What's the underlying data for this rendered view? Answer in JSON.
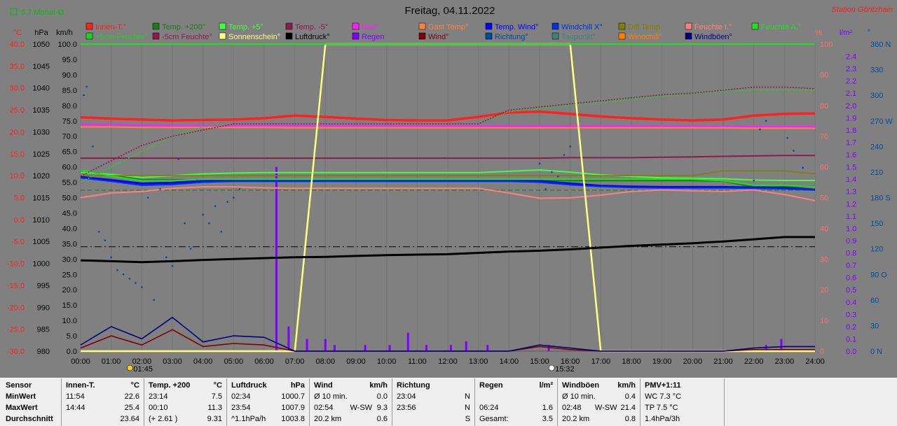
{
  "header": {
    "title": "Freitag, 04.11.2022",
    "station": "Station Göritzhain",
    "month_avg_label": "6.7 Monat-Ø"
  },
  "legend": [
    {
      "label": "Innen-T.°",
      "color": "#ff2020"
    },
    {
      "label": "Temp. +200°",
      "color": "#1d7a1d"
    },
    {
      "label": "Temp. +5°",
      "color": "#40ff40"
    },
    {
      "label": "Temp. -5°",
      "color": "#8b1c4a"
    },
    {
      "label": "Bad°",
      "color": "#ff20ff"
    },
    {
      "label": "Gast Temp°",
      "color": "#ff8040"
    },
    {
      "label": "Temp. Wind°",
      "color": "#0000ff"
    },
    {
      "label": "Windchill X°",
      "color": "#0033dd"
    },
    {
      "label": "Diff Temp.",
      "color": "#808000"
    },
    {
      "label": "Feuchte I.°",
      "color": "#ff8080"
    },
    {
      "label": "Feuchte A.°",
      "color": "#20e020"
    },
    {
      "label": "+5cm Feuchte°",
      "color": "#20d020"
    },
    {
      "label": "-5cm Feuchte°",
      "color": "#8b1c4a"
    },
    {
      "label": "Sonnenschein°",
      "color": "#ffff80"
    },
    {
      "label": "Luftdruck°",
      "color": "#000000"
    },
    {
      "label": "Regen",
      "color": "#8000ff"
    },
    {
      "label": "Wind°",
      "color": "#800000"
    },
    {
      "label": "Richtung°",
      "color": "#004a9a"
    },
    {
      "label": "Taupunkt°",
      "color": "#408080"
    },
    {
      "label": "Windchill°",
      "color": "#ff8000"
    },
    {
      "label": "Windböen°",
      "color": "#000080"
    }
  ],
  "axes": {
    "temp_unit": "°C",
    "hpa_unit": "hPa",
    "kmh_unit": "km/h",
    "pct_unit": "%",
    "rain_unit": "l/m²",
    "dir_unit": "°",
    "temp_ticks": [
      "40.0",
      "35.0",
      "30.0",
      "25.0",
      "20.0",
      "15.0",
      "10.0",
      "5.0",
      "0.0",
      "-5.0",
      "-10.0",
      "-15.0",
      "-20.0",
      "-25.0",
      "-30.0"
    ],
    "hpa_ticks": [
      "1050",
      "1045",
      "1040",
      "1035",
      "1030",
      "1025",
      "1020",
      "1015",
      "1010",
      "1005",
      "1000",
      "995",
      "990",
      "985",
      "980"
    ],
    "kmh_ticks": [
      "100.0",
      "95.0",
      "90.0",
      "85.0",
      "80.0",
      "75.0",
      "70.0",
      "65.0",
      "60.0",
      "55.0",
      "50.0",
      "45.0",
      "40.0",
      "35.0",
      "30.0",
      "25.0",
      "20.0",
      "15.0",
      "10.0",
      "5.0",
      "0.0"
    ],
    "pct_ticks": [
      "100",
      "90",
      "80",
      "70",
      "60",
      "50",
      "40",
      "30",
      "20",
      "10",
      "0"
    ],
    "rain_ticks": [
      "2.4",
      "2.3",
      "2.2",
      "2.1",
      "2.0",
      "1.9",
      "1.8",
      "1.7",
      "1.6",
      "1.5",
      "1.4",
      "1.3",
      "1.2",
      "1.1",
      "1.0",
      "0.9",
      "0.8",
      "0.7",
      "0.6",
      "0.5",
      "0.4",
      "0.3",
      "0.2",
      "0.1",
      "0.0"
    ],
    "dir_ticks": [
      "360 N",
      "330",
      "300",
      "270 W",
      "240",
      "210",
      "180 S",
      "150",
      "120",
      "90 O",
      "60",
      "30",
      "0 N"
    ],
    "x_ticks": [
      "00:00",
      "01:00",
      "02:00",
      "03:00",
      "04:00",
      "05:00",
      "06:00",
      "07:00",
      "08:00",
      "09:00",
      "10:00",
      "11:00",
      "12:00",
      "13:00",
      "14:00",
      "15:00",
      "16:00",
      "17:00",
      "18:00",
      "19:00",
      "20:00",
      "21:00",
      "22:00",
      "23:00",
      "24:00"
    ],
    "sunrise": "01:45",
    "sunset": "15:32"
  },
  "chart_data": {
    "type": "line",
    "x_hours": [
      0,
      1,
      2,
      3,
      4,
      5,
      6,
      7,
      8,
      9,
      10,
      11,
      12,
      13,
      14,
      15,
      16,
      17,
      18,
      19,
      20,
      21,
      22,
      23,
      24
    ],
    "series": [
      {
        "name": "Innen-T.°",
        "axis": "°C",
        "color": "#ff2020",
        "values": [
          23.3,
          23.0,
          22.8,
          22.6,
          22.7,
          22.8,
          23.1,
          23.7,
          23.4,
          23.0,
          22.7,
          22.6,
          22.6,
          23.4,
          24.4,
          24.6,
          24.1,
          23.5,
          23.1,
          22.8,
          22.6,
          22.8,
          23.7,
          24.1,
          24.2
        ]
      },
      {
        "name": "Temp. +200°",
        "axis": "°C",
        "color": "#1d7a1d",
        "values": [
          11.1,
          10.1,
          9.0,
          9.0,
          9.0,
          9.0,
          9.0,
          9.0,
          9.0,
          9.0,
          9.0,
          9.0,
          9.0,
          9.0,
          9.0,
          9.0,
          8.9,
          8.9,
          8.9,
          8.9,
          8.9,
          8.8,
          7.4,
          7.5,
          7.5
        ]
      },
      {
        "name": "Temp. +5°",
        "axis": "°C",
        "color": "#40ff40",
        "values": [
          10.8,
          10.3,
          9.6,
          10.0,
          10.4,
          10.6,
          10.7,
          10.7,
          10.7,
          10.7,
          10.7,
          10.7,
          10.7,
          10.7,
          11.0,
          11.3,
          10.8,
          10.2,
          9.8,
          9.5,
          9.4,
          9.3,
          9.0,
          8.9,
          8.9
        ]
      },
      {
        "name": "Temp. -5°",
        "axis": "°C",
        "color": "#8b1c4a",
        "values": [
          14.0,
          14.0,
          14.0,
          14.0,
          14.0,
          14.0,
          14.0,
          14.0,
          14.0,
          14.0,
          14.0,
          14.0,
          14.0,
          14.0,
          14.0,
          14.0,
          14.1,
          14.1,
          14.1,
          14.2,
          14.3,
          14.4,
          14.5,
          14.6,
          14.6
        ]
      },
      {
        "name": "Bad°",
        "axis": "°C",
        "color": "#ff20ff",
        "values": [
          21.7,
          21.6,
          21.5,
          21.4,
          21.4,
          21.4,
          21.4,
          21.4,
          21.4,
          21.4,
          21.4,
          21.3,
          21.3,
          21.3,
          21.3,
          21.3,
          21.3,
          21.3,
          21.3,
          21.3,
          21.3,
          21.2,
          21.2,
          21.2,
          21.2
        ]
      },
      {
        "name": "Gast Temp°",
        "axis": "°C",
        "color": "#ff8040",
        "values": [
          21.1,
          21.1,
          21.0,
          21.0,
          21.0,
          21.0,
          21.0,
          20.9,
          20.9,
          20.9,
          20.9,
          20.9,
          20.9,
          20.9,
          20.9,
          20.9,
          20.9,
          20.9,
          20.9,
          20.9,
          20.9,
          20.9,
          20.8,
          20.8,
          20.8
        ]
      },
      {
        "name": "Temp. Wind°",
        "axis": "°C",
        "color": "#0000ff",
        "values": [
          9.7,
          9.0,
          8.2,
          8.4,
          8.8,
          9.0,
          9.0,
          9.0,
          9.0,
          9.0,
          9.0,
          9.0,
          9.0,
          9.0,
          9.0,
          8.8,
          8.2,
          7.7,
          7.5,
          7.4,
          7.4,
          7.4,
          7.3,
          7.2,
          6.8
        ]
      },
      {
        "name": "Windchill X°",
        "axis": "°C",
        "color": "#0033dd",
        "values": [
          9.5,
          8.7,
          7.8,
          8.0,
          8.5,
          8.7,
          8.7,
          8.7,
          8.7,
          8.7,
          8.7,
          8.7,
          8.7,
          8.7,
          8.7,
          8.5,
          7.9,
          7.5,
          7.3,
          7.2,
          7.2,
          7.2,
          7.1,
          7.0,
          6.7
        ]
      },
      {
        "name": "Diff Temp.",
        "axis": "°C",
        "color": "#808000",
        "values": [
          10.0,
          10.0,
          10.0,
          10.0,
          10.0,
          10.0,
          10.0,
          10.0,
          10.0,
          10.0,
          10.0,
          10.0,
          10.0,
          10.0,
          10.0,
          10.0,
          10.0,
          10.0,
          10.0,
          10.0,
          10.0,
          11.1,
          11.1,
          11.1,
          10.4
        ]
      },
      {
        "name": "Feuchte I.°",
        "axis": "%",
        "color": "#ff8080",
        "values": [
          50.0,
          51.5,
          52.0,
          53.0,
          53.5,
          53.5,
          53.2,
          53.0,
          53.0,
          53.0,
          53.0,
          53.0,
          53.0,
          53.0,
          51.5,
          49.8,
          49.9,
          50.8,
          52.0,
          52.5,
          52.2,
          52.0,
          52.5,
          51.0,
          49.0
        ]
      },
      {
        "name": "Feuchte A.°",
        "axis": "%",
        "color": "#20e020",
        "values": [
          59.0,
          57.0,
          55.5,
          55.5,
          56.0,
          56.0,
          56.0,
          56.0,
          56.0,
          56.0,
          56.0,
          56.0,
          56.0,
          56.0,
          56.0,
          56.0,
          56.0,
          56.0,
          56.0,
          56.0,
          56.0,
          55.5,
          54.0,
          54.0,
          53.5
        ]
      },
      {
        "name": "+5cm Feuchte°",
        "axis": "%",
        "color": "#20d020",
        "values": [
          55.0,
          60.0,
          65.0,
          70.0,
          73.0,
          74.0,
          74.0,
          74.0,
          74.0,
          74.0,
          74.0,
          74.0,
          74.0,
          74.0,
          78.0,
          79.0,
          80.0,
          81.0,
          82.0,
          83.0,
          84.0,
          84.5,
          85.0,
          85.0,
          85.0
        ]
      },
      {
        "name": "-5cm Feuchte°",
        "axis": "%",
        "color": "#8b1c4a",
        "values": [
          57.0,
          62.0,
          67.0,
          70.0,
          72.0,
          74.0,
          74.0,
          74.0,
          74.0,
          74.0,
          74.0,
          74.0,
          74.0,
          74.0,
          78.5,
          79.5,
          80.5,
          81.5,
          82.5,
          83.5,
          84.0,
          85.0,
          86.0,
          86.0,
          85.5
        ]
      },
      {
        "name": "Sonnenschein°",
        "axis": "%",
        "color": "#ffff80",
        "values": [
          0,
          0,
          0,
          0,
          0,
          0,
          0,
          0,
          100,
          100,
          100,
          100,
          100,
          100,
          100,
          100,
          100,
          0,
          0,
          0,
          0,
          0,
          0,
          0,
          0
        ]
      },
      {
        "name": "Luftdruck°",
        "axis": "hPa",
        "color": "#000000",
        "values": [
          1000.7,
          1000.5,
          1000.3,
          1000.5,
          1000.8,
          1001.0,
          1001.2,
          1001.4,
          1001.5,
          1001.7,
          1001.9,
          1002.0,
          1002.1,
          1002.4,
          1002.7,
          1002.9,
          1003.2,
          1003.6,
          1004.0,
          1004.3,
          1004.6,
          1005.0,
          1005.5,
          1006.0,
          1006.0
        ]
      },
      {
        "name": "Wind°",
        "axis": "km/h",
        "color": "#800000",
        "values": [
          1.0,
          5.0,
          2.0,
          7.0,
          1.5,
          2.5,
          2.0,
          0,
          0,
          0,
          0,
          0,
          0,
          0,
          0,
          1.5,
          0.5,
          0,
          0,
          0,
          0,
          0,
          0.5,
          0.5,
          0.5
        ]
      },
      {
        "name": "Windböen°",
        "axis": "km/h",
        "color": "#000080",
        "values": [
          2.0,
          8.0,
          4.0,
          11.0,
          3.0,
          5.0,
          4.5,
          0,
          0,
          0,
          0,
          0,
          0,
          0,
          0,
          2.0,
          1.0,
          0,
          0,
          0,
          0,
          0,
          1.0,
          1.5,
          1.5
        ]
      }
    ],
    "regen": {
      "axis": "l/m²",
      "color": "#8000ff",
      "hours": [
        6.4,
        6.8,
        7.4,
        8.0,
        8.3,
        9.3,
        10.1,
        10.7,
        11.3,
        12.1,
        12.6,
        13.3,
        15.3,
        22.4,
        22.9
      ],
      "values": [
        1.5,
        0.2,
        0.1,
        0.1,
        0.05,
        0.05,
        0.05,
        0.15,
        0.05,
        0.05,
        0.08,
        0.05,
        0.05,
        0.05,
        0.1
      ]
    },
    "richtung": {
      "axis": "°",
      "color": "#004a9a",
      "hours": [
        0.1,
        0.2,
        0.4,
        0.6,
        0.8,
        1.0,
        1.2,
        1.4,
        1.6,
        1.8,
        2.0,
        2.2,
        2.4,
        2.6,
        2.8,
        3.0,
        3.2,
        3.4,
        3.6,
        3.8,
        4.0,
        4.2,
        4.4,
        4.6,
        4.8,
        5.0,
        5.2,
        15.0,
        15.2,
        15.4,
        15.6,
        15.8,
        16.0,
        22.0,
        22.2,
        22.4,
        23.1,
        23.3,
        23.6
      ],
      "values": [
        300,
        310,
        240,
        140,
        130,
        110,
        95,
        90,
        85,
        80,
        75,
        180,
        60,
        190,
        110,
        100,
        225,
        150,
        120,
        200,
        160,
        150,
        170,
        140,
        175,
        180,
        190,
        220,
        190,
        210,
        205,
        230,
        240,
        200,
        260,
        270,
        250,
        235,
        215
      ]
    },
    "stats": {
      "innen_t": {
        "min": 22.6,
        "max": 25.4,
        "avg": 23.64
      },
      "temp_200": {
        "min": 7.5,
        "max": 11.3,
        "avg": 9.31
      },
      "luftdruck": {
        "min": 1000.7,
        "max": 1007.9,
        "avg": 1003.8
      },
      "wind_avg10": 0.0
    }
  },
  "stats_table": {
    "labels": {
      "header": "Sensor",
      "min": "MinWert",
      "max": "MaxWert",
      "avg": "Durchschnitt"
    },
    "cols": [
      {
        "title": "Innen-T.",
        "unit": "°C",
        "rows": [
          [
            "11:54",
            "22.6"
          ],
          [
            "14:44",
            "25.4"
          ],
          [
            "",
            "23.64"
          ]
        ]
      },
      {
        "title": "Temp. +200",
        "unit": "°C",
        "rows": [
          [
            "23:14",
            "7.5"
          ],
          [
            "00:10",
            "11.3"
          ],
          [
            "(+ 2.61 )",
            "9.31"
          ]
        ]
      },
      {
        "title": "Luftdruck",
        "unit": "hPa",
        "rows": [
          [
            "02:34",
            "1000.7"
          ],
          [
            "23:54",
            "1007.9"
          ],
          [
            "^1.1hPa/h",
            "1003.8"
          ]
        ]
      },
      {
        "title": "Wind",
        "unit": "km/h",
        "rows": [
          [
            "Ø 10 min.",
            "",
            "0.0"
          ],
          [
            "02:54",
            "W-SW",
            "9.3"
          ],
          [
            "20.2 km",
            "",
            "0.6"
          ]
        ]
      },
      {
        "title": "Richtung",
        "unit": "",
        "rows": [
          [
            "23:04",
            "N"
          ],
          [
            "23:56",
            "N"
          ],
          [
            "",
            "S"
          ]
        ]
      },
      {
        "title": "Regen",
        "unit": "l/m²",
        "rows": [
          [
            "",
            ""
          ],
          [
            "06:24",
            "1.6"
          ],
          [
            "Gesamt:",
            "3.5"
          ]
        ]
      },
      {
        "title": "Windböen",
        "unit": "km/h",
        "rows": [
          [
            "Ø 10 min.",
            "",
            "0.4"
          ],
          [
            "02:48",
            "W-SW",
            "21.4"
          ],
          [
            "20.2 km",
            "",
            "0.8"
          ]
        ]
      },
      {
        "title": "PMV+1:11",
        "unit": "",
        "rows": [
          [
            "WC 7.3 °C",
            ""
          ],
          [
            "TP 7.5 °C",
            ""
          ],
          [
            "1.4hPa/3h",
            ""
          ]
        ]
      }
    ]
  }
}
